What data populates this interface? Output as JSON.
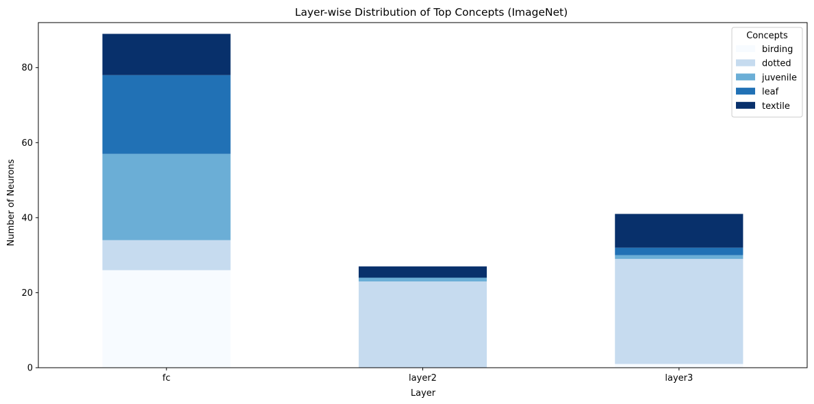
{
  "chart_data": {
    "type": "bar",
    "stacked": true,
    "title": "Layer-wise Distribution of Top Concepts (ImageNet)",
    "xlabel": "Layer",
    "ylabel": "Number of Neurons",
    "categories": [
      "fc",
      "layer2",
      "layer3"
    ],
    "series": [
      {
        "name": "birding",
        "color": "#f7fbff",
        "values": [
          26,
          0,
          1
        ]
      },
      {
        "name": "dotted",
        "color": "#c6dbef",
        "values": [
          8,
          23,
          28
        ]
      },
      {
        "name": "juvenile",
        "color": "#6baed6",
        "values": [
          23,
          1,
          1
        ]
      },
      {
        "name": "leaf",
        "color": "#2171b5",
        "values": [
          21,
          0,
          2
        ]
      },
      {
        "name": "textile",
        "color": "#08306b",
        "values": [
          11,
          3,
          9
        ]
      }
    ],
    "ylim": [
      0,
      92
    ],
    "yticks": [
      0,
      20,
      40,
      60,
      80
    ],
    "grid": false,
    "legend": {
      "title": "Concepts",
      "position": "top-right"
    }
  }
}
